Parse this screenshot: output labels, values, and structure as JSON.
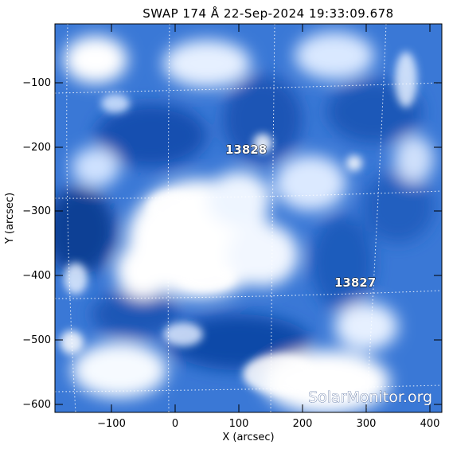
{
  "title": "SWAP 174 Å 22-Sep-2024 19:33:09.678",
  "xlabel": "X (arcsec)",
  "ylabel": "Y (arcsec)",
  "x_ticks": [
    "−100",
    "0",
    "100",
    "200",
    "300",
    "400"
  ],
  "y_ticks": [
    "−100",
    "−200",
    "−300",
    "−400",
    "−500",
    "−600"
  ],
  "regions": [
    {
      "label": "13828"
    },
    {
      "label": "13827"
    }
  ],
  "watermark": "SolarMonitor.org",
  "colors": {
    "colormap_dark": "#0a3a8a",
    "colormap_mid": "#2f6fd0",
    "colormap_light": "#ffffff"
  }
}
